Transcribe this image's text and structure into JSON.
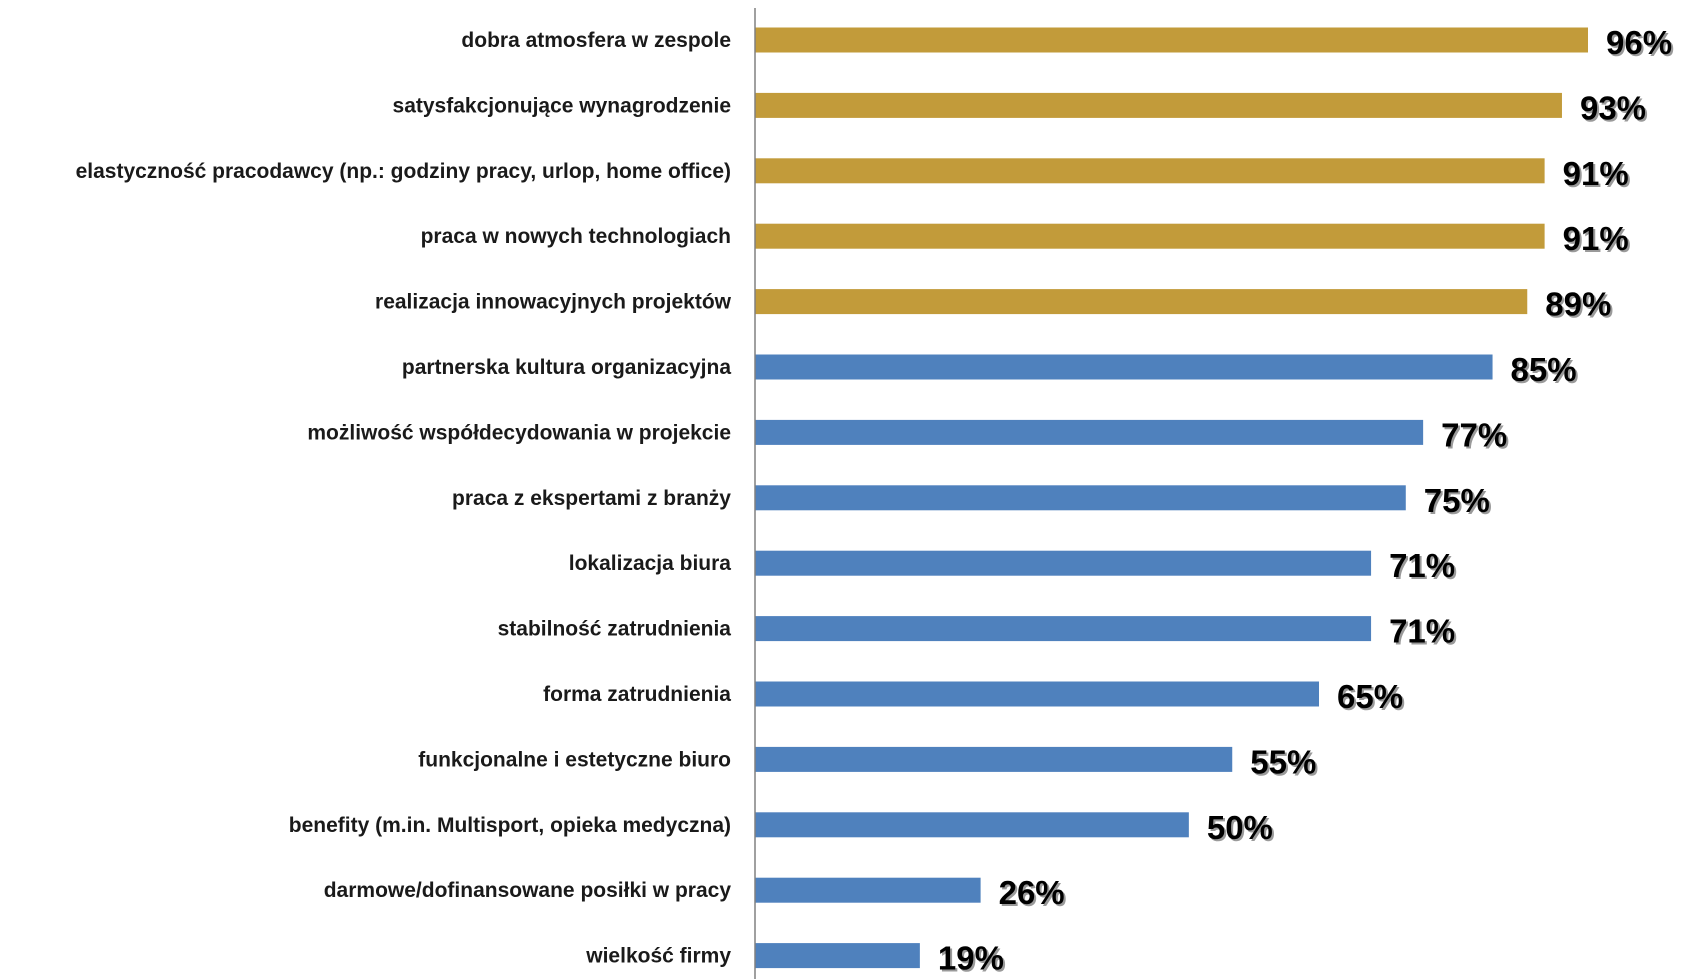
{
  "chart_data": {
    "type": "bar",
    "orientation": "horizontal",
    "categories": [
      "dobra atmosfera w zespole",
      "satysfakcjonujące wynagrodzenie",
      "elastyczność pracodawcy (np.: godziny pracy, urlop, home office)",
      "praca w nowych technologiach",
      "realizacja innowacyjnych projektów",
      "partnerska kultura organizacyjna",
      "możliwość współdecydowania w projekcie",
      "praca z ekspertami z branży",
      "lokalizacja biura",
      "stabilność zatrudnienia",
      "forma zatrudnienia",
      "funkcjonalne i estetyczne biuro",
      "benefity (m.in. Multisport, opieka medyczna)",
      "darmowe/dofinansowane posiłki w pracy",
      "wielkość firmy"
    ],
    "values": [
      96,
      93,
      91,
      91,
      89,
      85,
      77,
      75,
      71,
      71,
      65,
      55,
      50,
      26,
      19
    ],
    "value_labels": [
      "96%",
      "93%",
      "91%",
      "91%",
      "89%",
      "85%",
      "77%",
      "75%",
      "71%",
      "71%",
      "65%",
      "55%",
      "50%",
      "26%",
      "19%"
    ],
    "bar_colors": [
      "#c29b3a",
      "#c29b3a",
      "#c29b3a",
      "#c29b3a",
      "#c29b3a",
      "#4f81bd",
      "#4f81bd",
      "#4f81bd",
      "#4f81bd",
      "#4f81bd",
      "#4f81bd",
      "#4f81bd",
      "#4f81bd",
      "#4f81bd",
      "#4f81bd"
    ],
    "xlim": [
      0,
      100
    ],
    "title": "",
    "xlabel": "",
    "ylabel": "",
    "grid": false,
    "legend": "none"
  }
}
